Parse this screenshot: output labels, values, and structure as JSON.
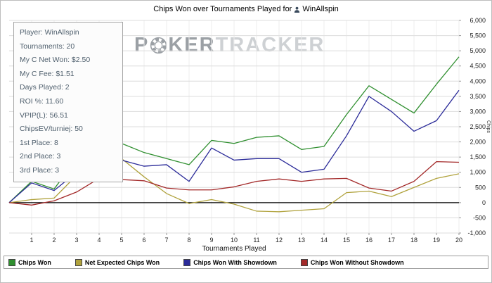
{
  "title": {
    "prefix": "Chips Won over Tournaments Played for",
    "player": "WinAllspin",
    "player_icon": "player-icon"
  },
  "watermark": {
    "part1": "P",
    "part2": "KER",
    "part3": "TRACKER",
    "icon": "poker-chip-icon"
  },
  "stats_panel": {
    "items": [
      "Player: WinAllspin",
      "Tournaments: 20",
      "My C Net Won: $2.50",
      "My C Fee: $1.51",
      "Days Played: 2",
      "ROI %: 11.60",
      "VPIP(L): 56.51",
      "ChipsEV/turniej: 50",
      "1st Place: 8",
      "2nd Place: 3",
      "3rd Place: 3"
    ]
  },
  "axes": {
    "x_title": "Tournaments Played",
    "y_title": "Chips"
  },
  "chart_data": {
    "type": "line",
    "title": "Chips Won over Tournaments Played for WinAllspin",
    "xlabel": "Tournaments Played",
    "ylabel": "Chips",
    "xlim": [
      0,
      20
    ],
    "ylim": [
      -1000,
      6000
    ],
    "grid": true,
    "legend_position": "bottom",
    "x": [
      0,
      1,
      2,
      3,
      4,
      5,
      6,
      7,
      8,
      9,
      10,
      11,
      12,
      13,
      14,
      15,
      16,
      17,
      18,
      19,
      20
    ],
    "x_ticks": [
      1,
      2,
      3,
      4,
      5,
      6,
      7,
      8,
      9,
      10,
      11,
      12,
      13,
      14,
      15,
      16,
      17,
      18,
      19,
      20
    ],
    "y_ticks": [
      -1000,
      -500,
      0,
      500,
      1000,
      1500,
      2000,
      2500,
      3000,
      3500,
      4000,
      4500,
      5000,
      5500,
      6000
    ],
    "series": [
      {
        "name": "Chips Won",
        "color": "#2f8f2f",
        "values": [
          0,
          700,
          450,
          1450,
          2450,
          1950,
          1650,
          1450,
          1250,
          2050,
          1950,
          2150,
          2200,
          1750,
          1850,
          2900,
          3850,
          3400,
          2950,
          3900,
          4800
        ]
      },
      {
        "name": "Net Expected Chips Won",
        "color": "#b0a23c",
        "values": [
          0,
          100,
          150,
          900,
          1700,
          1450,
          850,
          300,
          -30,
          100,
          -50,
          -280,
          -300,
          -250,
          -200,
          330,
          380,
          200,
          500,
          800,
          950
        ]
      },
      {
        "name": "Chips Won With Showdown",
        "color": "#2b2b99",
        "values": [
          0,
          650,
          400,
          1000,
          1500,
          1400,
          1200,
          1250,
          700,
          1800,
          1400,
          1450,
          1450,
          1000,
          1100,
          2200,
          3500,
          3000,
          2350,
          2700,
          3700
        ]
      },
      {
        "name": "Chips Won Without Showdown",
        "color": "#a32929",
        "values": [
          0,
          -80,
          60,
          350,
          800,
          760,
          720,
          480,
          420,
          420,
          520,
          700,
          780,
          700,
          780,
          800,
          480,
          380,
          700,
          1350,
          1330
        ]
      }
    ]
  }
}
